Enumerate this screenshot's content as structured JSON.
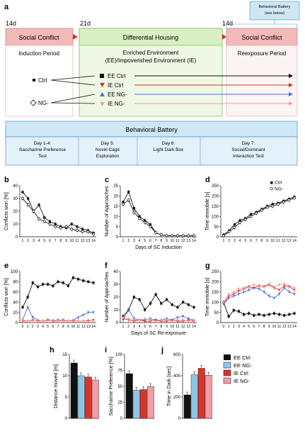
{
  "panel_labels": [
    "a",
    "b",
    "c",
    "d",
    "e",
    "f",
    "g",
    "h",
    "i",
    "j"
  ],
  "timeline": {
    "t_14d": "14d",
    "t_21d": "21d",
    "t_14d_b": "14d",
    "battery_note": "Behavioral Battery\n(see below)",
    "box_social_conflict_1": "Social Conflict",
    "box_differential": "Differential Housing",
    "box_social_conflict_2": "Social Conflict",
    "induction": "Induction Period",
    "enriched": "Enriched Environment\n(EE)/Impoverished Environment (IE)",
    "reexposure": "Reexposure Period",
    "groups_left": [
      "Ctrl",
      "NG-"
    ],
    "groups_right": [
      "EE Ctrl",
      "IE Ctrl",
      "EE NG-",
      "IE NG-"
    ],
    "battery_title": "Behavioral Battery",
    "battery_days": [
      {
        "title": "Day 1-4:",
        "desc": "Saccharine Preference\nTest"
      },
      {
        "title": "Day 5:",
        "desc": "Novel Cage\nExploration"
      },
      {
        "title": "Day 6:",
        "desc": "Light Dark Box"
      },
      {
        "title": "Day 7:",
        "desc": "Social/Dominant\nInteraction Test"
      }
    ]
  },
  "colors": {
    "black": "#111111",
    "red": "#d9342b",
    "blue": "#4a6fd8",
    "pink": "#f29ca5",
    "lightblue": "#8fc6e8",
    "conflict_fill": "#f4b9b9",
    "housing_fill": "#d9f0c5",
    "battery_fill": "#cfe7f5"
  },
  "chart_data": [
    {
      "id": "b",
      "type": "line",
      "ylabel": "Conflicts won [%]",
      "xlabel": "",
      "ylim": [
        0,
        40
      ],
      "yticks": [
        0,
        10,
        20,
        30,
        40
      ],
      "x": [
        1,
        2,
        3,
        4,
        5,
        6,
        7,
        8,
        9,
        10,
        11,
        12,
        13,
        14
      ],
      "series": [
        {
          "name": "Ctrl",
          "values": [
            35,
            30,
            20,
            25,
            15,
            12,
            10,
            8,
            7,
            10,
            8,
            6,
            5,
            3
          ]
        },
        {
          "name": "NG-",
          "values": [
            30,
            25,
            20,
            14,
            12,
            10,
            8,
            7,
            8,
            6,
            5,
            4,
            4,
            2
          ]
        }
      ]
    },
    {
      "id": "c",
      "type": "line",
      "ylabel": "Number of Approaches",
      "xlabel": "Days of SC Induction",
      "ylim": [
        0,
        25
      ],
      "yticks": [
        0,
        5,
        10,
        15,
        20,
        25
      ],
      "x": [
        1,
        2,
        3,
        4,
        5,
        6,
        7,
        8,
        9,
        10,
        11,
        12,
        13,
        14
      ],
      "series": [
        {
          "name": "Ctrl",
          "values": [
            17,
            22,
            14,
            10,
            8,
            6,
            2,
            1,
            0.5,
            0.5,
            0.5,
            0.5,
            0.5,
            0.5
          ]
        },
        {
          "name": "NG-",
          "values": [
            16,
            18,
            12,
            9,
            7,
            5,
            2,
            1,
            0.5,
            0.5,
            0.5,
            0.5,
            0.5,
            0.5
          ]
        }
      ]
    },
    {
      "id": "d",
      "type": "line",
      "ylabel": "Time immobile [s]",
      "xlabel": "",
      "ylim": [
        0,
        250
      ],
      "yticks": [
        0,
        50,
        100,
        150,
        200,
        250
      ],
      "x": [
        1,
        2,
        3,
        4,
        5,
        6,
        7,
        8,
        9,
        10,
        11,
        12,
        13,
        14
      ],
      "legend": [
        "Ctrl",
        "NG-"
      ],
      "series": [
        {
          "name": "Ctrl",
          "values": [
            10,
            30,
            60,
            80,
            90,
            110,
            120,
            135,
            150,
            160,
            165,
            175,
            185,
            195
          ]
        },
        {
          "name": "NG-",
          "values": [
            5,
            25,
            45,
            70,
            85,
            100,
            115,
            130,
            145,
            150,
            160,
            170,
            180,
            190
          ]
        }
      ]
    },
    {
      "id": "e",
      "type": "line",
      "ylabel": "Conflicts won [%]",
      "xlabel": "",
      "ylim": [
        0,
        100
      ],
      "yticks": [
        0,
        20,
        40,
        60,
        80,
        100
      ],
      "x": [
        0,
        1,
        2,
        3,
        4,
        5,
        6,
        7,
        8,
        9,
        10,
        11,
        12,
        13,
        14
      ],
      "series": [
        {
          "name": "EE Ctrl",
          "values": [
            30,
            50,
            78,
            70,
            75,
            75,
            72,
            80,
            78,
            72,
            88,
            85,
            82,
            80,
            78
          ]
        },
        {
          "name": "EE NG-",
          "values": [
            5,
            30,
            10,
            5,
            3,
            5,
            3,
            5,
            3,
            3,
            5,
            10,
            15,
            20,
            20
          ]
        },
        {
          "name": "IE Ctrl",
          "values": [
            3,
            3,
            5,
            3,
            3,
            5,
            3,
            3,
            5,
            3,
            3,
            3,
            3,
            3,
            5
          ]
        },
        {
          "name": "IE NG-",
          "values": [
            5,
            3,
            3,
            5,
            3,
            3,
            5,
            3,
            3,
            3,
            5,
            3,
            3,
            5,
            3
          ]
        }
      ]
    },
    {
      "id": "f",
      "type": "line",
      "ylabel": "Number of Approaches",
      "xlabel": "Days of SC Re-exposure",
      "ylim": [
        0,
        40
      ],
      "yticks": [
        0,
        10,
        20,
        30,
        40
      ],
      "x": [
        1,
        2,
        3,
        4,
        5,
        6,
        7,
        8,
        9,
        10,
        11,
        12,
        13,
        14
      ],
      "series": [
        {
          "name": "EE Ctrl",
          "values": [
            5,
            10,
            20,
            18,
            10,
            15,
            22,
            15,
            18,
            14,
            12,
            16,
            14,
            12
          ]
        },
        {
          "name": "EE NG-",
          "values": [
            2,
            10,
            3,
            2,
            2,
            3,
            2,
            2,
            3,
            2,
            4,
            5,
            3,
            2
          ]
        },
        {
          "name": "IE Ctrl",
          "values": [
            3,
            2,
            1,
            2,
            1,
            1,
            2,
            1,
            1,
            2,
            1,
            1,
            2,
            1
          ]
        },
        {
          "name": "IE NG-",
          "values": [
            4,
            3,
            2,
            2,
            3,
            2,
            1,
            2,
            2,
            1,
            2,
            2,
            1,
            2
          ]
        }
      ]
    },
    {
      "id": "g",
      "type": "line",
      "ylabel": "Time immobile [s]",
      "xlabel": "",
      "ylim": [
        0,
        250
      ],
      "yticks": [
        0,
        50,
        100,
        150,
        200,
        250
      ],
      "x": [
        0,
        1,
        2,
        3,
        4,
        5,
        6,
        7,
        8,
        9,
        10,
        11,
        12,
        13,
        14
      ],
      "series": [
        {
          "name": "EE Ctrl",
          "values": [
            100,
            30,
            60,
            55,
            40,
            45,
            35,
            40,
            35,
            40,
            45,
            40,
            35,
            40,
            45
          ]
        },
        {
          "name": "EE NG-",
          "values": [
            90,
            120,
            130,
            140,
            150,
            160,
            170,
            165,
            150,
            130,
            120,
            140,
            170,
            150,
            140
          ]
        },
        {
          "name": "IE Ctrl",
          "values": [
            95,
            130,
            140,
            155,
            165,
            175,
            170,
            180,
            175,
            185,
            170,
            160,
            180,
            175,
            160
          ]
        },
        {
          "name": "IE NG-",
          "values": [
            100,
            140,
            150,
            165,
            170,
            180,
            185,
            175,
            180,
            190,
            175,
            185,
            190,
            180,
            170
          ]
        }
      ]
    },
    {
      "id": "h",
      "type": "bar",
      "ylabel": "Distance moved [m]",
      "ylim": [
        0,
        15
      ],
      "yticks": [
        0,
        5,
        10,
        15
      ],
      "categories": [
        "EE Ctrl",
        "EE NG-",
        "IE Ctrl",
        "IE NG-"
      ],
      "values": [
        13,
        10,
        9.7,
        9
      ]
    },
    {
      "id": "i",
      "type": "bar",
      "ylabel": "Saccharine Preference [%]",
      "ylim": [
        0,
        100
      ],
      "yticks": [
        0,
        25,
        50,
        75,
        100
      ],
      "categories": [
        "EE Ctrl",
        "EE NG-",
        "IE Ctrl",
        "IE NG-"
      ],
      "values": [
        70,
        44,
        45,
        50
      ]
    },
    {
      "id": "j",
      "type": "bar",
      "ylabel": "Time in Dark [sec]",
      "ylim": [
        0,
        600
      ],
      "yticks": [
        0,
        200,
        400,
        600
      ],
      "categories": [
        "EE Ctrl",
        "EE NG-",
        "IE Ctrl",
        "IE NG-"
      ],
      "values": [
        220,
        410,
        470,
        405
      ]
    }
  ],
  "xlabels": {
    "c": "Days of SC Induction",
    "f": "Days of SC Re-exposure"
  },
  "bar_legend": [
    "EE Ctrl",
    "EE NG-",
    "IE Ctrl",
    "IE NG-"
  ],
  "line_legend": [
    "Ctrl",
    "NG-"
  ]
}
